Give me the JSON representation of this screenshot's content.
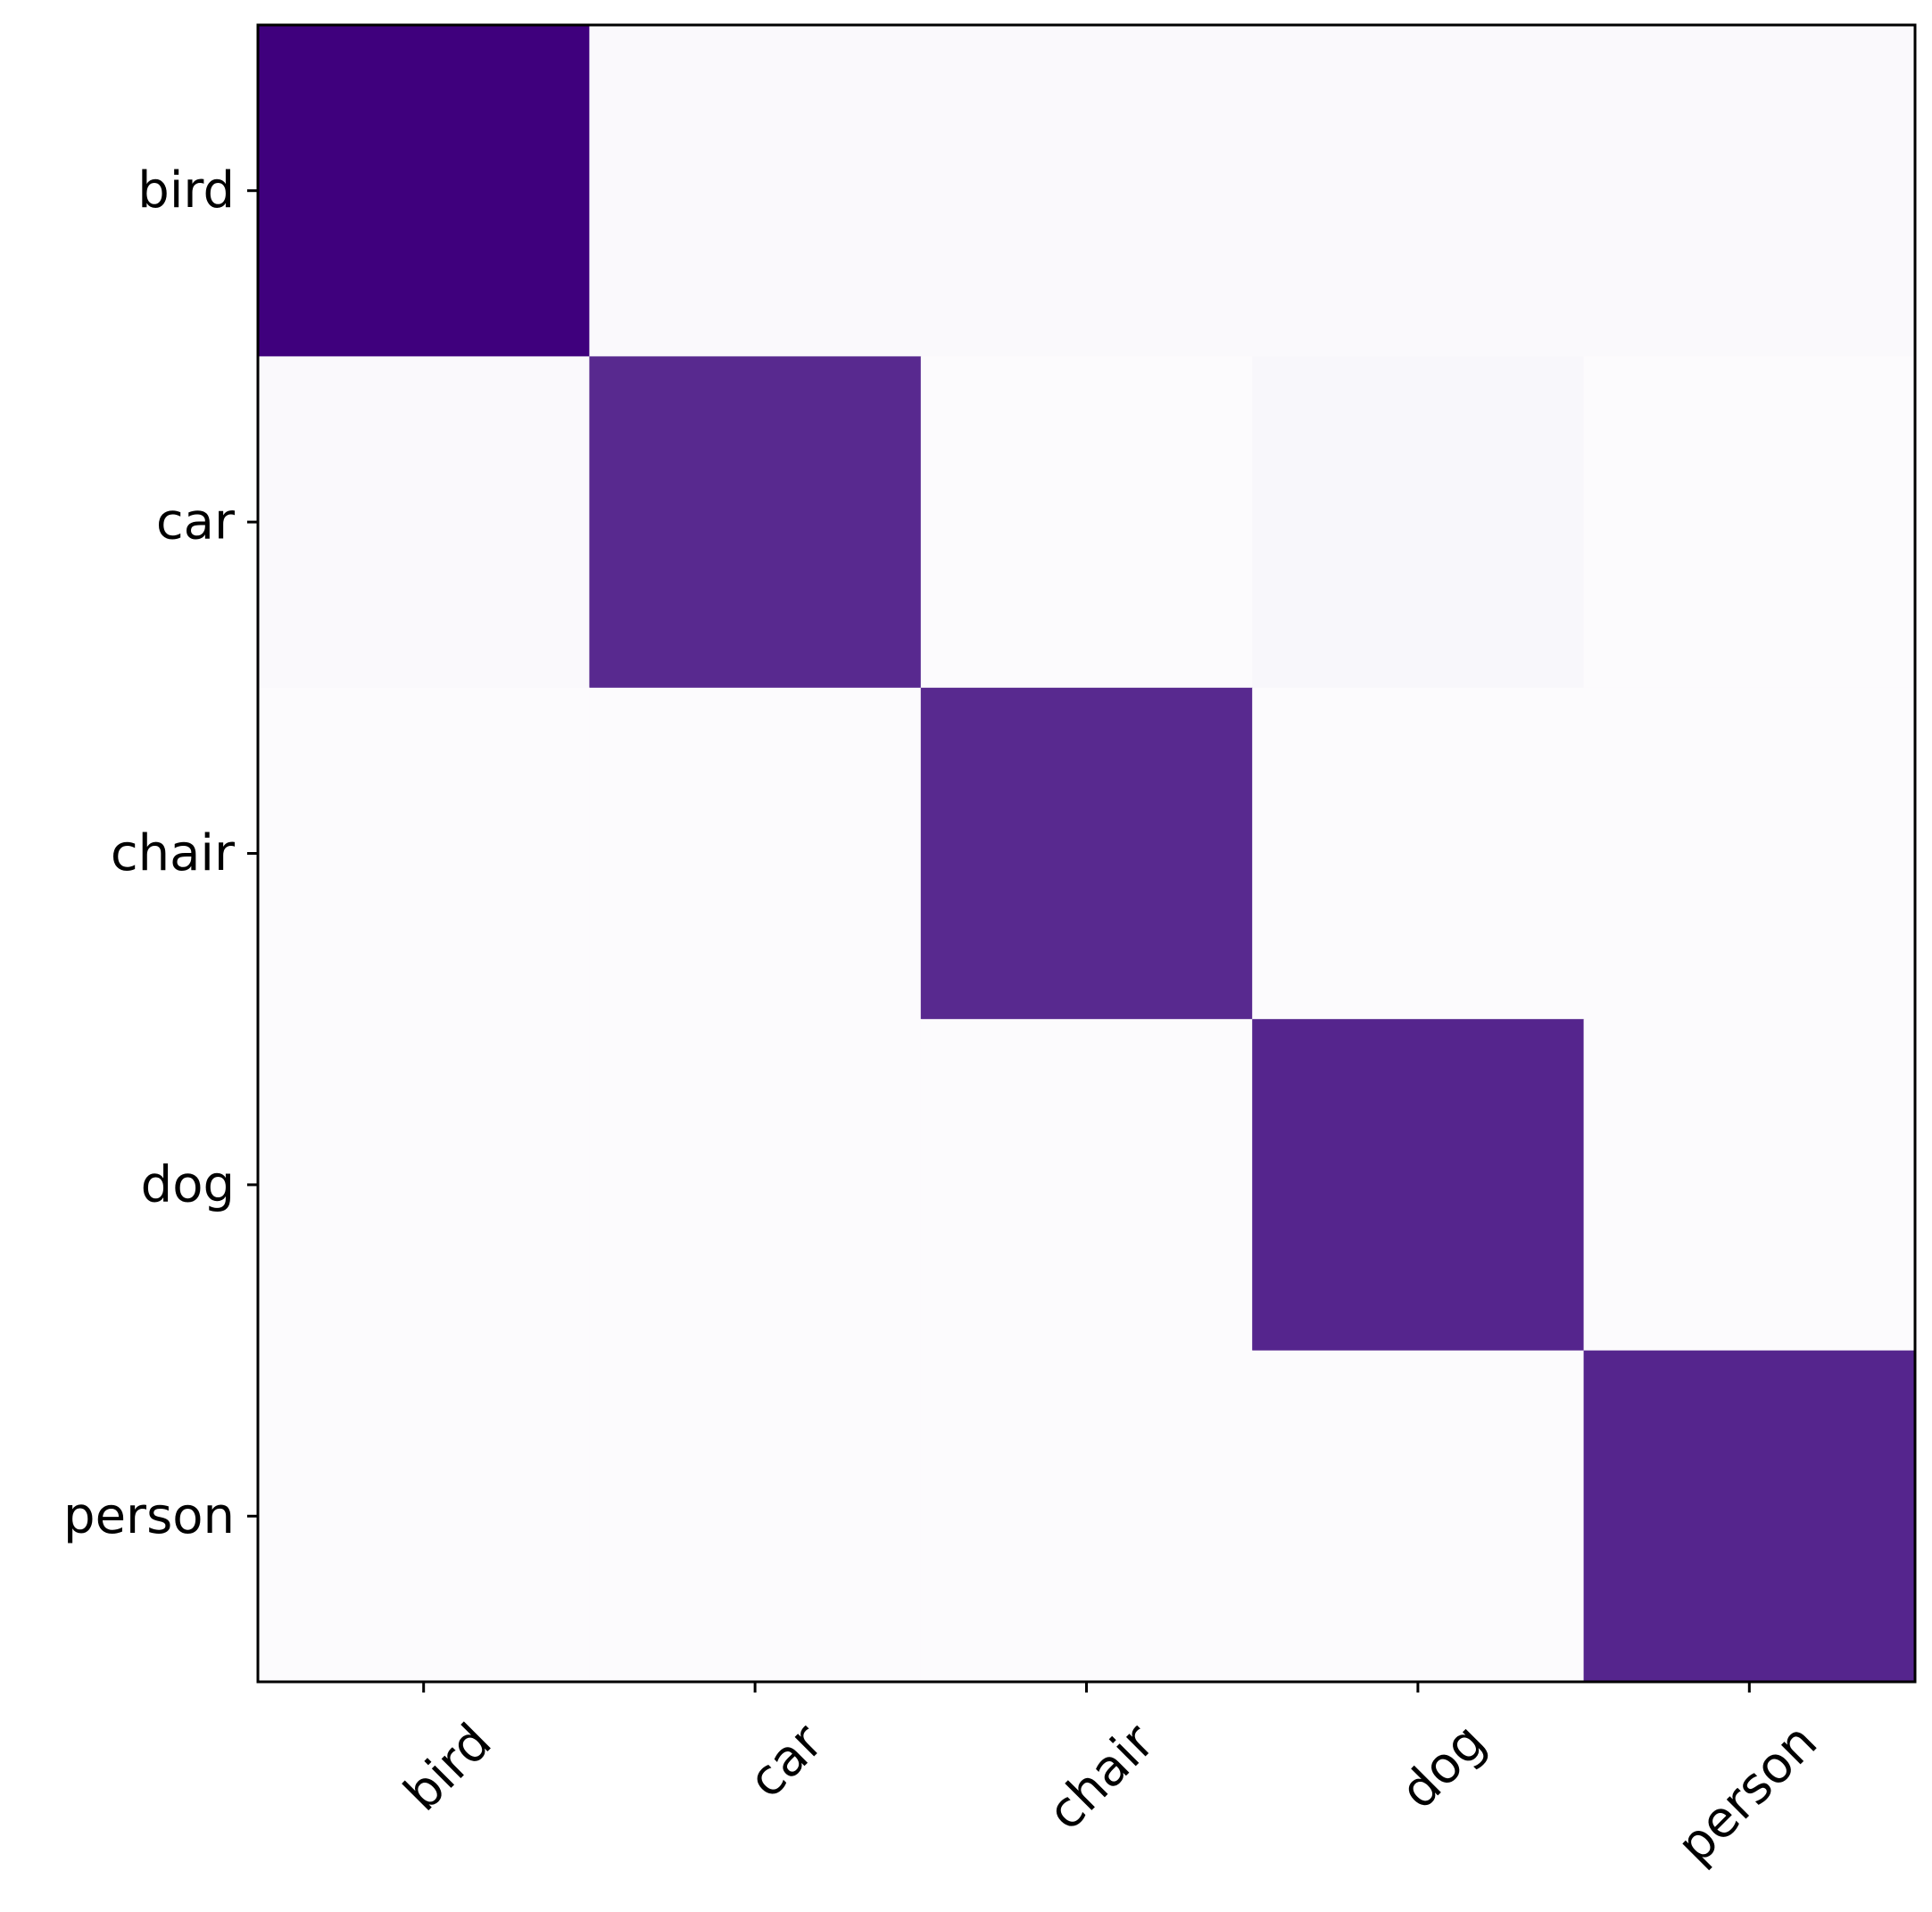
{
  "chart_data": {
    "type": "heatmap",
    "title": "",
    "xlabel": "",
    "ylabel": "",
    "x_categories": [
      "bird",
      "car",
      "chair",
      "dog",
      "person"
    ],
    "y_categories": [
      "bird",
      "car",
      "chair",
      "dog",
      "person"
    ],
    "values": [
      [
        1.0,
        0.01,
        0.01,
        0.01,
        0.01
      ],
      [
        0.01,
        0.8,
        0.0,
        0.02,
        0.0
      ],
      [
        0.0,
        0.0,
        0.8,
        0.0,
        0.0
      ],
      [
        0.0,
        0.0,
        0.0,
        0.82,
        0.0
      ],
      [
        0.0,
        0.0,
        0.0,
        0.0,
        0.82
      ]
    ],
    "value_range": [
      0,
      1
    ],
    "colormap": "Purples",
    "color_low": "#fcfbfd",
    "color_high": "#3f007d",
    "xtick_rotation": 45,
    "grid": false,
    "colorbar": false
  }
}
